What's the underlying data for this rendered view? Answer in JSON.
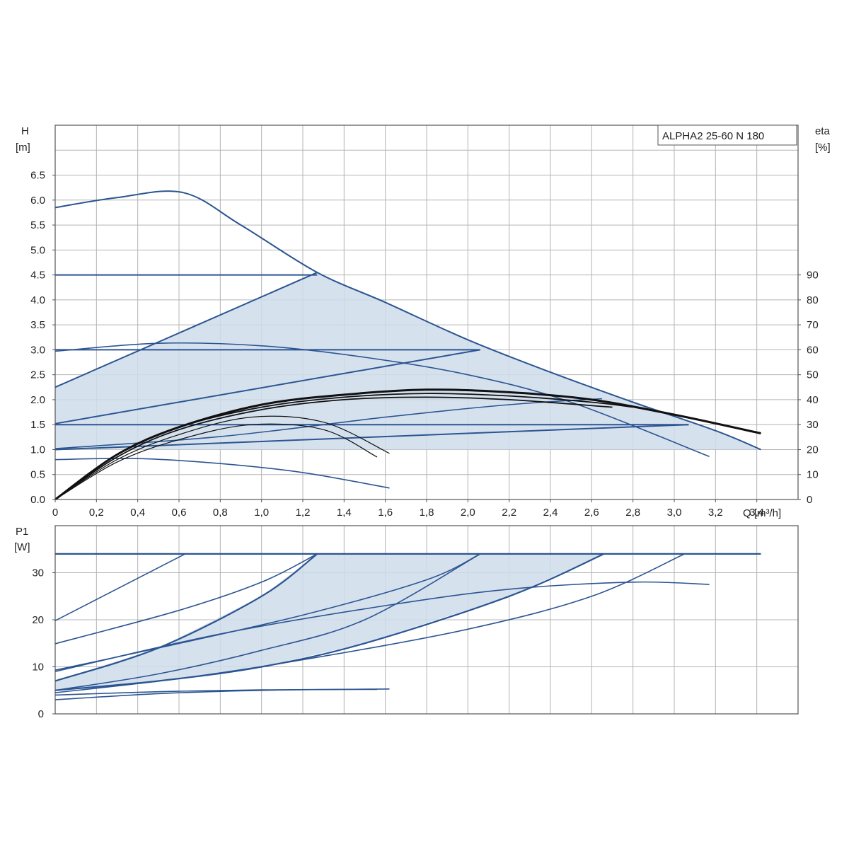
{
  "colors": {
    "curve": "#2b5592",
    "fill": "#cfdceb",
    "efficiency": "#111111",
    "grid": "#b4b4b4",
    "frame": "#555555"
  },
  "chart_data": [
    {
      "type": "line",
      "title": "",
      "legend": "ALPHA2 25-60 N 180",
      "legend_position": "top-right",
      "xlabel": "Q [m³/h]",
      "ylabel_h": "H",
      "ylabel_h_unit": "[m]",
      "ylabel_eta": "eta",
      "ylabel_eta_unit": "[%]",
      "xlim": [
        0,
        3.6
      ],
      "ylim": [
        0,
        7.5
      ],
      "eta_lim": [
        0,
        150
      ],
      "x_ticks": [
        "0",
        "0,2",
        "0,4",
        "0,6",
        "0,8",
        "1,0",
        "1,2",
        "1,4",
        "1,6",
        "1,8",
        "2,0",
        "2,2",
        "2,4",
        "2,6",
        "2,8",
        "3,0",
        "3,2",
        "3,4"
      ],
      "y_ticks": [
        "0.0",
        "0.5",
        "1.0",
        "1.5",
        "2.0",
        "2.5",
        "3.0",
        "3.5",
        "4.0",
        "4.5",
        "5.0",
        "5.5",
        "6.0",
        "6.5"
      ],
      "eta_ticks": [
        "0",
        "10",
        "20",
        "30",
        "40",
        "50",
        "60",
        "70",
        "80",
        "90"
      ],
      "grid": true,
      "operating_area": [
        [
          0,
          2.25
        ],
        [
          1.27,
          4.55
        ],
        [
          1.6,
          3.95
        ],
        [
          2.0,
          3.2
        ],
        [
          2.4,
          2.55
        ],
        [
          2.8,
          1.95
        ],
        [
          3.2,
          1.38
        ],
        [
          3.42,
          1.0
        ],
        [
          0,
          1.0
        ]
      ],
      "series": [
        {
          "values": [
            [
              0,
              5.85
            ],
            [
              0.3,
              6.05
            ],
            [
              0.62,
              6.15
            ],
            [
              0.9,
              5.5
            ],
            [
              1.27,
              4.55
            ],
            [
              1.6,
              3.95
            ],
            [
              2.0,
              3.2
            ],
            [
              2.4,
              2.55
            ],
            [
              2.8,
              1.95
            ],
            [
              3.2,
              1.38
            ],
            [
              3.42,
              1.0
            ]
          ]
        },
        {
          "values": [
            [
              0,
              4.5
            ],
            [
              1.27,
              4.5
            ]
          ]
        },
        {
          "values": [
            [
              0,
              3.0
            ],
            [
              2.06,
              3.0
            ]
          ]
        },
        {
          "values": [
            [
              0,
              1.5
            ],
            [
              3.07,
              1.5
            ]
          ]
        },
        {
          "values": [
            [
              0,
              2.25
            ],
            [
              1.27,
              4.55
            ]
          ]
        },
        {
          "values": [
            [
              0,
              1.52
            ],
            [
              2.06,
              3.0
            ]
          ]
        },
        {
          "values": [
            [
              0,
              1.0
            ],
            [
              3.07,
              1.5
            ]
          ]
        },
        {
          "values": [
            [
              0,
              2.97
            ],
            [
              0.5,
              3.13
            ],
            [
              1.0,
              3.08
            ],
            [
              1.5,
              2.85
            ],
            [
              2.0,
              2.5
            ],
            [
              2.5,
              1.95
            ],
            [
              3.17,
              0.86
            ]
          ]
        },
        {
          "values": [
            [
              0,
              1.02
            ],
            [
              0.8,
              1.26
            ],
            [
              1.6,
              1.65
            ],
            [
              2.2,
              1.9
            ],
            [
              2.65,
              2.02
            ]
          ]
        },
        {
          "values": [
            [
              0,
              0.8
            ],
            [
              0.4,
              0.82
            ],
            [
              0.8,
              0.72
            ],
            [
              1.2,
              0.54
            ],
            [
              1.62,
              0.23
            ]
          ]
        }
      ],
      "efficiency_series": [
        {
          "values": [
            [
              0,
              0
            ],
            [
              0.3,
              18
            ],
            [
              0.6,
              29
            ],
            [
              1.0,
              38
            ],
            [
              1.4,
              42
            ],
            [
              1.8,
              44
            ],
            [
              2.2,
              43
            ],
            [
              2.6,
              40
            ],
            [
              3.0,
              34
            ],
            [
              3.42,
              26.5
            ]
          ]
        },
        {
          "values": [
            [
              0,
              0
            ],
            [
              0.3,
              18
            ],
            [
              0.6,
              29
            ],
            [
              1.0,
              37
            ],
            [
              1.4,
              41
            ],
            [
              1.8,
              42.5
            ],
            [
              2.2,
              41.5
            ],
            [
              2.6,
              39
            ],
            [
              2.8,
              37
            ]
          ]
        },
        {
          "values": [
            [
              0,
              0
            ],
            [
              0.3,
              17
            ],
            [
              0.6,
              28
            ],
            [
              1.0,
              36
            ],
            [
              1.4,
              40
            ],
            [
              1.8,
              41
            ],
            [
              2.2,
              40
            ],
            [
              2.7,
              37
            ]
          ]
        },
        {
          "values": [
            [
              0,
              0
            ],
            [
              0.3,
              16
            ],
            [
              0.6,
              26
            ],
            [
              0.95,
              33
            ],
            [
              1.3,
              31
            ],
            [
              1.62,
              18.5
            ]
          ]
        },
        {
          "values": [
            [
              0,
              0
            ],
            [
              0.3,
              15
            ],
            [
              0.6,
              24
            ],
            [
              0.95,
              30
            ],
            [
              1.3,
              28
            ],
            [
              1.56,
              17
            ]
          ]
        }
      ]
    },
    {
      "type": "line",
      "title": "",
      "ylabel": "P1",
      "ylabel_unit": "[W]",
      "xlim": [
        0,
        3.6
      ],
      "ylim": [
        0,
        40
      ],
      "y_ticks": [
        "0",
        "10",
        "20",
        "30"
      ],
      "grid": true,
      "operating_area": [
        [
          0,
          7
        ],
        [
          0.5,
          14
        ],
        [
          1.0,
          25
        ],
        [
          1.27,
          34
        ],
        [
          2.66,
          34
        ],
        [
          2.2,
          25
        ],
        [
          1.5,
          15
        ],
        [
          1.0,
          10
        ],
        [
          0.5,
          7
        ],
        [
          0,
          5
        ]
      ],
      "series": [
        {
          "values": [
            [
              0,
              34
            ],
            [
              3.42,
              34
            ]
          ]
        },
        {
          "values": [
            [
              0,
              19.8
            ],
            [
              0.63,
              34
            ]
          ]
        },
        {
          "values": [
            [
              0,
              14.9
            ],
            [
              0.6,
              22
            ],
            [
              1.0,
              28
            ],
            [
              1.27,
              34
            ]
          ]
        },
        {
          "values": [
            [
              0,
              7
            ],
            [
              0.5,
              14
            ],
            [
              1.0,
              25
            ],
            [
              1.27,
              34
            ]
          ]
        },
        {
          "values": [
            [
              0,
              9.3
            ],
            [
              0.5,
              14
            ],
            [
              1.2,
              21
            ],
            [
              1.8,
              28.5
            ],
            [
              2.06,
              34
            ]
          ]
        },
        {
          "values": [
            [
              0,
              5
            ],
            [
              0.5,
              8.5
            ],
            [
              1.0,
              13.5
            ],
            [
              1.5,
              20
            ],
            [
              2.06,
              34
            ]
          ]
        },
        {
          "values": [
            [
              0,
              5
            ],
            [
              0.5,
              7
            ],
            [
              1.0,
              10
            ],
            [
              1.5,
              15
            ],
            [
              2.2,
              25
            ],
            [
              2.66,
              34
            ]
          ]
        },
        {
          "values": [
            [
              0,
              4.5
            ],
            [
              0.6,
              7.5
            ],
            [
              1.2,
              11.5
            ],
            [
              2.0,
              18
            ],
            [
              2.6,
              25
            ],
            [
              3.05,
              34
            ]
          ]
        },
        {
          "values": [
            [
              0,
              9
            ],
            [
              0.8,
              17
            ],
            [
              1.6,
              23
            ],
            [
              2.2,
              26.5
            ],
            [
              2.8,
              28
            ],
            [
              3.17,
              27.5
            ]
          ]
        },
        {
          "values": [
            [
              0,
              3
            ],
            [
              0.5,
              4.3
            ],
            [
              1.0,
              5
            ],
            [
              1.62,
              5.3
            ]
          ]
        },
        {
          "values": [
            [
              0,
              4
            ],
            [
              0.5,
              4.7
            ],
            [
              1.0,
              5.1
            ],
            [
              1.56,
              5.2
            ]
          ]
        }
      ]
    }
  ]
}
